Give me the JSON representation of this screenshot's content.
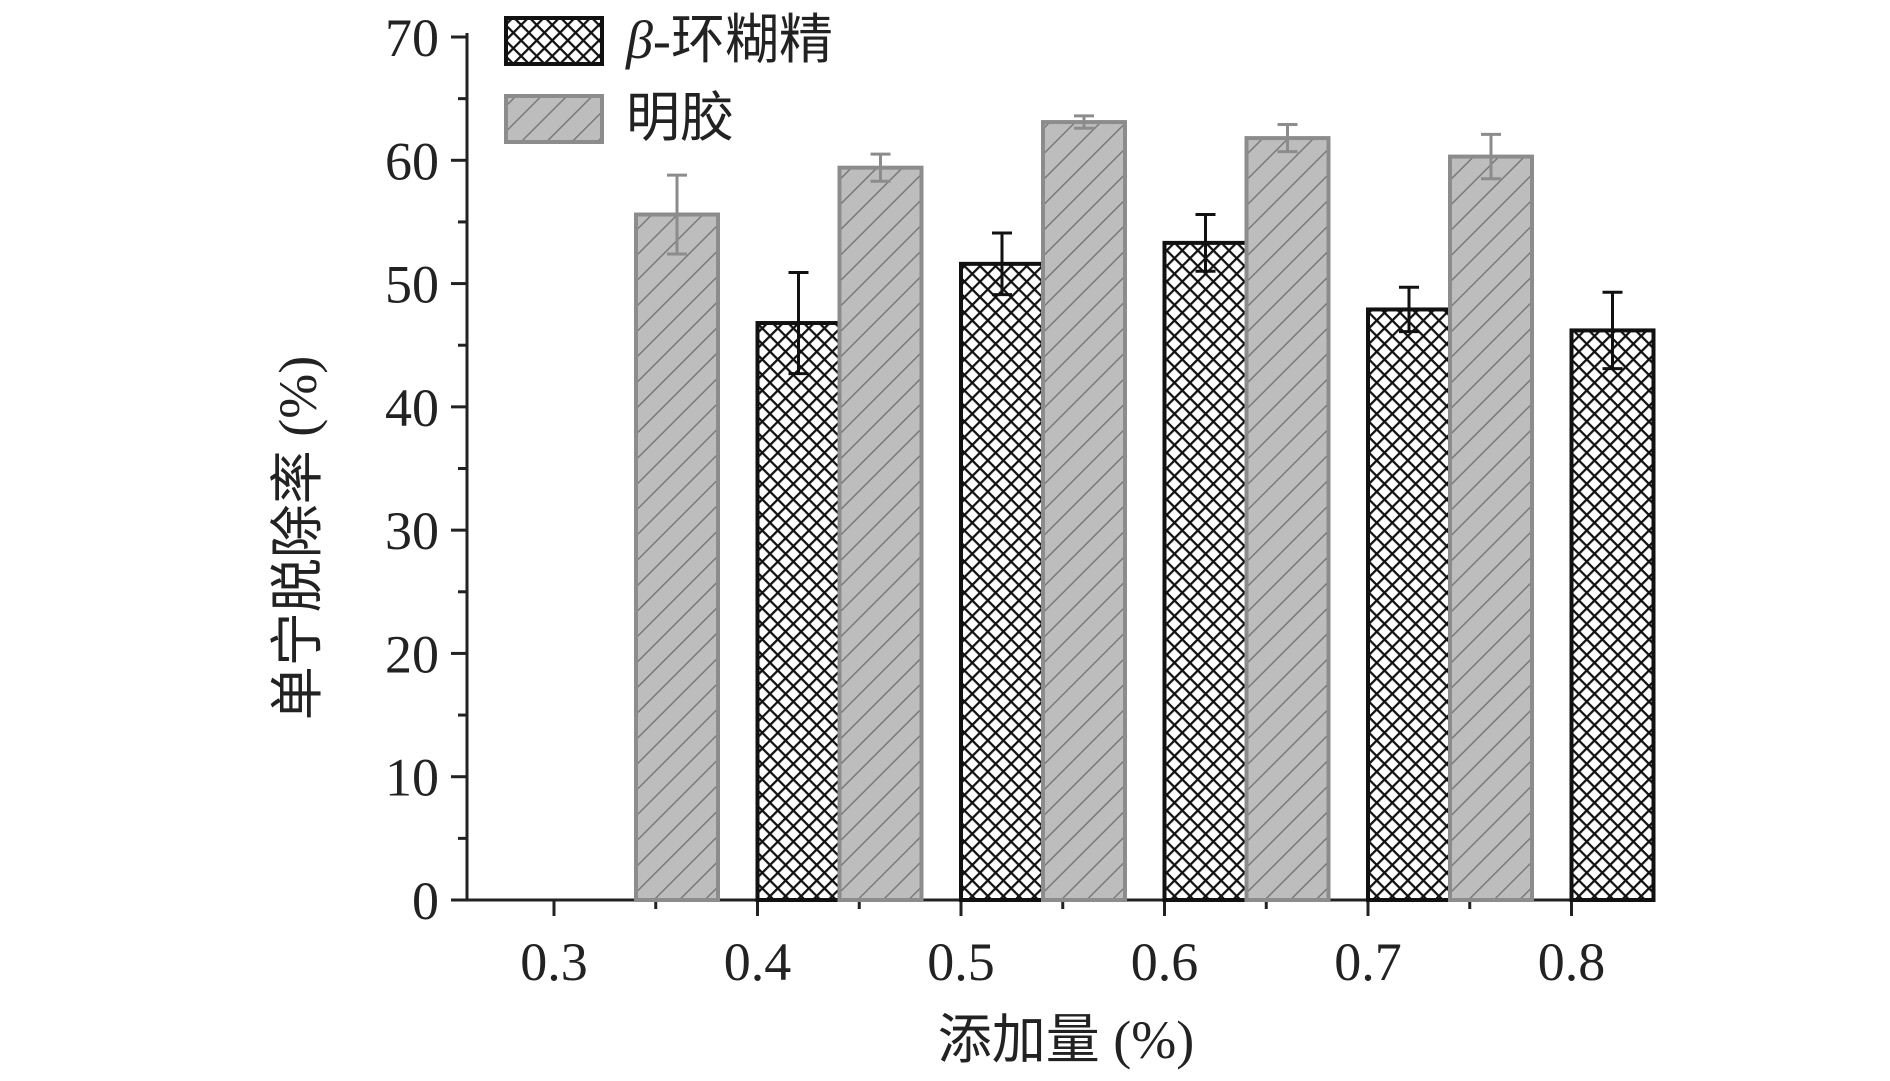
{
  "chart_data": {
    "type": "bar",
    "title": "",
    "xlabel": "添加量 (%)",
    "ylabel": "单宁脱除率 (%)",
    "categories": [
      "0.3",
      "0.4",
      "0.5",
      "0.6",
      "0.7",
      "0.8"
    ],
    "ylim": [
      0,
      70
    ],
    "yticks": [
      "0",
      "10",
      "20",
      "30",
      "40",
      "50",
      "60",
      "70"
    ],
    "legend_position": "top-left",
    "series": [
      {
        "name": "β-环糊精",
        "legend_greek": "β",
        "legend_suffix": "-环糊精",
        "pattern": "crosshatch",
        "color": "#1a1a1a",
        "values": [
          null,
          46.8,
          51.6,
          53.3,
          47.9,
          46.2
        ],
        "errors": [
          null,
          4.1,
          2.5,
          2.3,
          1.8,
          3.1
        ]
      },
      {
        "name": "明胶",
        "pattern": "diagonal",
        "color": "#8c8c8c",
        "values": [
          55.6,
          59.4,
          63.1,
          61.8,
          60.3,
          null
        ],
        "errors": [
          3.2,
          1.1,
          0.5,
          1.1,
          1.8,
          null
        ]
      }
    ]
  }
}
